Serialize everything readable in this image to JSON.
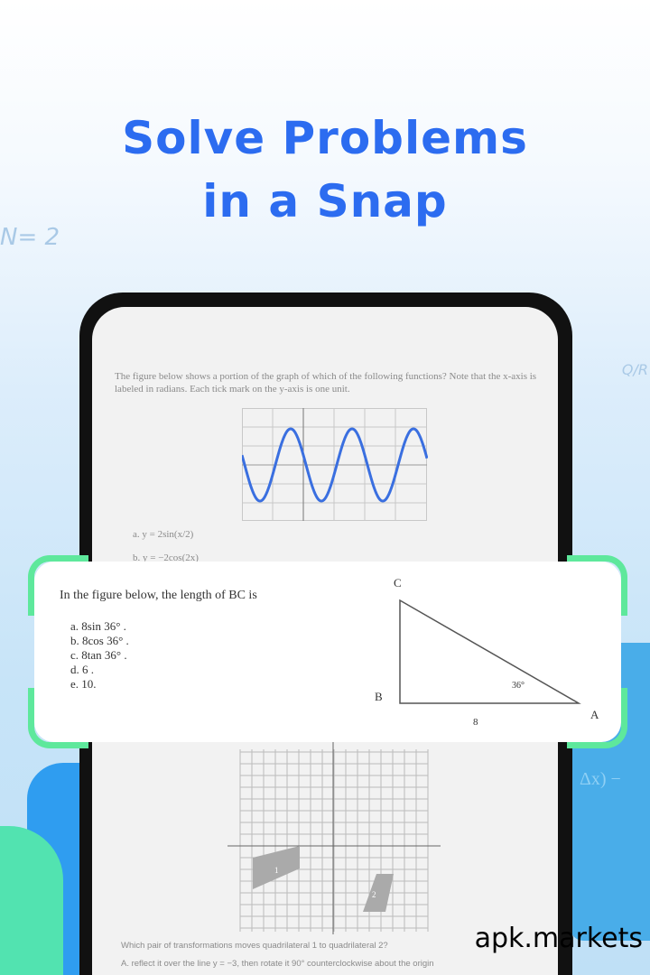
{
  "headline": {
    "line1": "Solve Problems",
    "line2": "in a Snap"
  },
  "doodles": {
    "left": "N= 2",
    "right": "Q/R"
  },
  "background_math": "Δx) −",
  "question1": {
    "text": "The figure below shows a portion of the graph of which of the following functions? Note that the x-axis is labeled in radians. Each tick mark on the y-axis is one unit.",
    "options": [
      "a.  y = 2sin(x/2)",
      "b.  y = −2cos(2x)"
    ]
  },
  "highlight_card": {
    "question": "In the figure below, the length of BC is",
    "options": [
      "a.  8sin 36° .",
      "b.  8cos 36° .",
      "c.  8tan 36° .",
      "d.  6 .",
      "e.  10."
    ],
    "triangle": {
      "vertex_a": "A",
      "vertex_b": "B",
      "vertex_c": "C",
      "angle": "36°",
      "side_ab": "8"
    }
  },
  "question3": {
    "text": "Which pair of transformations moves quadrilateral 1 to quadrilateral 2?",
    "option_a": "A.   reflect it over the line y = −3, then rotate it 90° counterclockwise about the origin",
    "shape_labels": [
      "1",
      "2"
    ]
  },
  "watermark": "apk.markets",
  "colors": {
    "headline": "#2c6cf0",
    "bracket": "#5ee89c",
    "curve": "#3a6fe0",
    "panel": "#49ade9"
  }
}
